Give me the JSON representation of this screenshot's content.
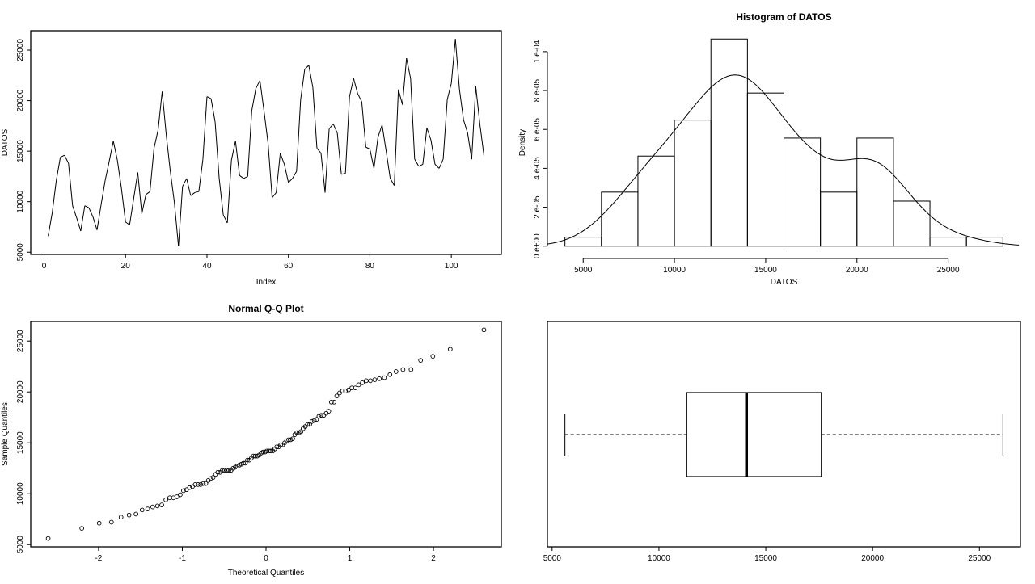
{
  "chart_data": [
    {
      "type": "line",
      "title": "",
      "xlabel": "Index",
      "ylabel": "DATOS",
      "xticks": [
        0,
        20,
        40,
        60,
        80,
        100
      ],
      "yticks": [
        5000,
        10000,
        15000,
        20000,
        25000
      ],
      "values": [
        6600,
        8900,
        12100,
        14400,
        14600,
        13800,
        9600,
        8400,
        7100,
        9600,
        9400,
        8500,
        7200,
        9700,
        12100,
        14000,
        16000,
        14100,
        11300,
        8000,
        7700,
        10300,
        12900,
        8800,
        10700,
        11000,
        15300,
        17100,
        20900,
        16600,
        13000,
        9900,
        5600,
        11500,
        12300,
        10600,
        10900,
        11000,
        14200,
        20400,
        20200,
        17900,
        12300,
        8700,
        7900,
        14100,
        16000,
        12600,
        12300,
        12500,
        19000,
        21200,
        22000,
        19000,
        15800,
        10400,
        10900,
        14800,
        13700,
        11900,
        12300,
        13000,
        20100,
        23100,
        23500,
        21300,
        15300,
        14800,
        10900,
        17200,
        17700,
        16800,
        12700,
        12800,
        20400,
        22200,
        20700,
        19900,
        15400,
        15200,
        13300,
        16400,
        17600,
        15000,
        12300,
        11600,
        21100,
        19600,
        24200,
        22200,
        14200,
        13500,
        13700,
        17300,
        16100,
        13700,
        13300,
        14200,
        20100,
        21700,
        26100,
        21100,
        18100,
        16800,
        14200,
        21400,
        17700,
        14600
      ]
    },
    {
      "type": "bar",
      "title": "Histogram of DATOS",
      "xlabel": "DATOS",
      "ylabel": "Density",
      "bin_edges": [
        4000,
        6000,
        8000,
        10000,
        12000,
        14000,
        16000,
        18000,
        20000,
        22000,
        24000,
        26000,
        28000
      ],
      "counts": [
        1,
        6,
        10,
        14,
        23,
        17,
        12,
        6,
        12,
        5,
        1,
        1
      ],
      "xticks": [
        5000,
        10000,
        15000,
        20000,
        25000
      ],
      "yticks": [
        0,
        2e-05,
        4e-05,
        6e-05,
        8e-05,
        0.0001
      ],
      "ytick_labels": [
        "0 e+00",
        "2 e-05",
        "4 e-05",
        "6 e-05",
        "8 e-05",
        "1 e-04"
      ],
      "overlay": "kernel density curve"
    },
    {
      "type": "scatter",
      "title": "Normal Q-Q Plot",
      "xlabel": "Theoretical Quantiles",
      "ylabel": "Sample Quantiles",
      "xticks": [
        -2,
        -1,
        0,
        1,
        2
      ],
      "yticks": [
        5000,
        10000,
        15000,
        20000,
        25000
      ],
      "source": "sorted values of series 1 vs normal quantiles"
    },
    {
      "type": "box",
      "title": "",
      "orientation": "horizontal",
      "min": 5600,
      "q1": 11300,
      "median": 14100,
      "q3": 17600,
      "max": 26100,
      "xticks": [
        5000,
        10000,
        15000,
        20000,
        25000
      ]
    }
  ]
}
